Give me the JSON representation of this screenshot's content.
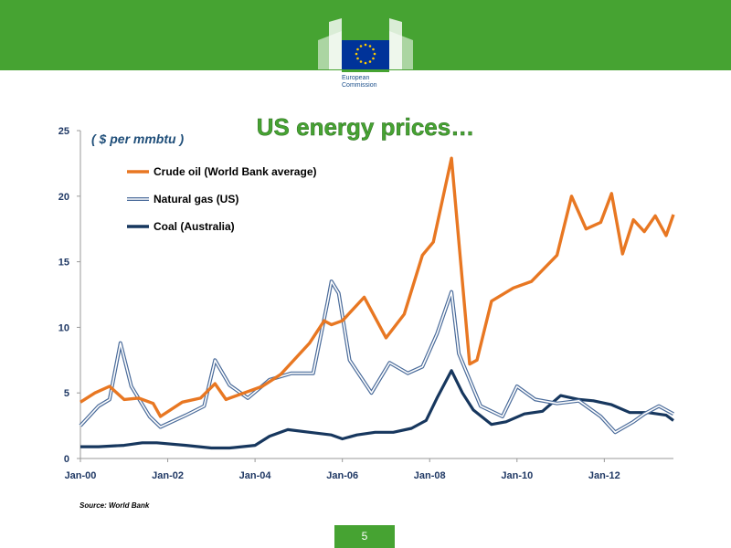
{
  "header": {
    "org_line1": "European",
    "org_line2": "Commission"
  },
  "slide": {
    "title": "US energy prices…",
    "source": "Source: World Bank",
    "page_number": "5"
  },
  "colors": {
    "green": "#46a332",
    "crude": "#e87722",
    "gas": "#4a6b9a",
    "coal": "#17375e",
    "title": "#46a332",
    "unit": "#1f4e79"
  },
  "chart_data": {
    "type": "line",
    "unit_label": "( $ per mmbtu )",
    "ylim": [
      0,
      25
    ],
    "yticks": [
      "0",
      "5",
      "10",
      "15",
      "20",
      "25"
    ],
    "xlim": [
      "2000-01",
      "2013-08"
    ],
    "xticks": [
      "Jan-00",
      "Jan-02",
      "Jan-04",
      "Jan-06",
      "Jan-08",
      "Jan-10",
      "Jan-12"
    ],
    "grid": false,
    "legend_placement": "top-left",
    "series": [
      {
        "name": "Crude oil (World Bank average)",
        "x": [
          "2000-01",
          "2000-05",
          "2000-09",
          "2001-01",
          "2001-05",
          "2001-09",
          "2001-11",
          "2002-05",
          "2002-10",
          "2003-02",
          "2003-05",
          "2003-10",
          "2004-03",
          "2004-08",
          "2005-04",
          "2005-08",
          "2005-10",
          "2006-01",
          "2006-07",
          "2007-01",
          "2007-06",
          "2007-11",
          "2008-02",
          "2008-07",
          "2008-12",
          "2009-02",
          "2009-06",
          "2009-12",
          "2010-05",
          "2010-12",
          "2011-04",
          "2011-08",
          "2011-12",
          "2012-03",
          "2012-06",
          "2012-09",
          "2012-12",
          "2013-03",
          "2013-06",
          "2013-08"
        ],
        "values": [
          4.3,
          5.0,
          5.5,
          4.5,
          4.6,
          4.2,
          3.2,
          4.3,
          4.6,
          5.7,
          4.5,
          5.0,
          5.5,
          6.4,
          8.8,
          10.5,
          10.2,
          10.5,
          12.3,
          9.2,
          11.0,
          15.5,
          16.5,
          22.9,
          7.2,
          7.5,
          12.0,
          13.0,
          13.5,
          15.5,
          20.0,
          17.5,
          18.0,
          20.2,
          15.6,
          18.2,
          17.3,
          18.5,
          17.0,
          18.6
        ]
      },
      {
        "name": "Natural gas (US)",
        "x": [
          "2000-01",
          "2000-06",
          "2000-09",
          "2000-12",
          "2001-03",
          "2001-08",
          "2001-11",
          "2002-06",
          "2002-11",
          "2003-02",
          "2003-06",
          "2003-11",
          "2004-05",
          "2004-11",
          "2005-05",
          "2005-09",
          "2005-10",
          "2005-12",
          "2006-03",
          "2006-09",
          "2007-02",
          "2007-07",
          "2007-11",
          "2008-03",
          "2008-07",
          "2008-09",
          "2009-03",
          "2009-09",
          "2010-01",
          "2010-06",
          "2010-12",
          "2011-06",
          "2011-12",
          "2012-04",
          "2012-09",
          "2012-12",
          "2013-04",
          "2013-08"
        ],
        "values": [
          2.5,
          4.0,
          4.5,
          8.8,
          5.5,
          3.2,
          2.4,
          3.3,
          4.0,
          7.5,
          5.6,
          4.6,
          6.0,
          6.5,
          6.5,
          12.0,
          13.5,
          12.6,
          7.5,
          5.0,
          7.3,
          6.5,
          7.0,
          9.5,
          12.7,
          8.0,
          4.0,
          3.2,
          5.5,
          4.5,
          4.2,
          4.4,
          3.2,
          2.0,
          2.8,
          3.4,
          4.0,
          3.4
        ]
      },
      {
        "name": "Coal (Australia)",
        "x": [
          "2000-01",
          "2000-06",
          "2001-01",
          "2001-06",
          "2001-10",
          "2002-06",
          "2003-01",
          "2003-06",
          "2004-01",
          "2004-05",
          "2004-10",
          "2005-04",
          "2005-10",
          "2006-01",
          "2006-05",
          "2006-10",
          "2007-03",
          "2007-08",
          "2007-12",
          "2008-03",
          "2008-07",
          "2008-10",
          "2009-01",
          "2009-06",
          "2009-10",
          "2010-03",
          "2010-08",
          "2011-01",
          "2011-06",
          "2011-10",
          "2012-03",
          "2012-08",
          "2013-01",
          "2013-06",
          "2013-08"
        ],
        "values": [
          0.9,
          0.9,
          1.0,
          1.2,
          1.2,
          1.0,
          0.8,
          0.8,
          1.0,
          1.7,
          2.2,
          2.0,
          1.8,
          1.5,
          1.8,
          2.0,
          2.0,
          2.3,
          2.9,
          4.6,
          6.7,
          5.0,
          3.7,
          2.6,
          2.8,
          3.4,
          3.6,
          4.8,
          4.5,
          4.4,
          4.1,
          3.5,
          3.5,
          3.3,
          2.9
        ]
      }
    ]
  }
}
